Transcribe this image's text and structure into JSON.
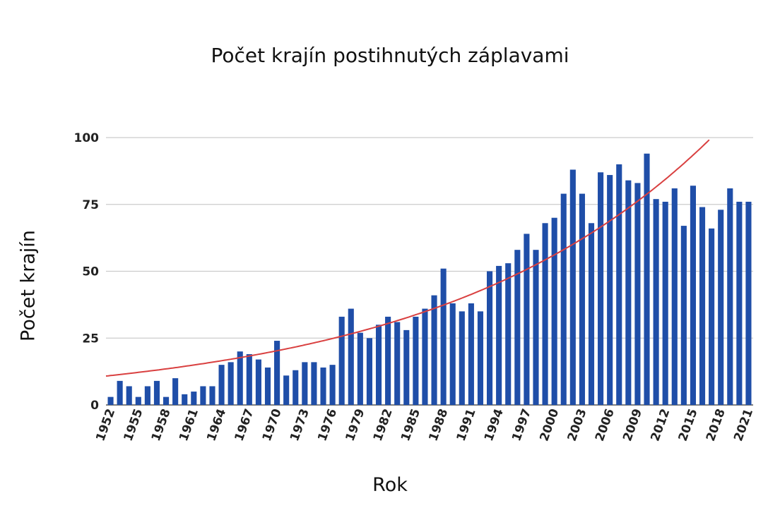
{
  "chart_data": {
    "type": "bar",
    "title": "Počet krajín postihnutých záplavami",
    "xlabel": "Rok",
    "ylabel": "Počet krajín",
    "ylim": [
      0,
      100
    ],
    "yticks": [
      0,
      25,
      50,
      75,
      100
    ],
    "x_start": 1952,
    "x_end": 2021,
    "xtick_labels": [
      "1952",
      "1955",
      "1958",
      "1961",
      "1964",
      "1967",
      "1970",
      "1973",
      "1976",
      "1979",
      "1982",
      "1985",
      "1988",
      "1991",
      "1994",
      "1997",
      "2000",
      "2003",
      "2006",
      "2009",
      "2012",
      "2015",
      "2018",
      "2021"
    ],
    "values": [
      3,
      9,
      7,
      3,
      7,
      9,
      3,
      10,
      4,
      5,
      7,
      7,
      15,
      16,
      20,
      19,
      17,
      14,
      24,
      11,
      13,
      16,
      16,
      14,
      15,
      33,
      36,
      27,
      25,
      30,
      33,
      31,
      28,
      33,
      36,
      41,
      51,
      38,
      35,
      38,
      35,
      50,
      52,
      53,
      58,
      64,
      58,
      68,
      70,
      79,
      88,
      79,
      68,
      87,
      86,
      90,
      84,
      83,
      94,
      77,
      76,
      81,
      67,
      82,
      74,
      66,
      73,
      81,
      76,
      76
    ],
    "trend": {
      "type": "exponential",
      "start_value": 11,
      "end_value_at_2017": 100
    },
    "grid": true,
    "colors": {
      "bar": "#1f4ea8",
      "trend": "#d94040",
      "grid": "#cccccc"
    }
  }
}
